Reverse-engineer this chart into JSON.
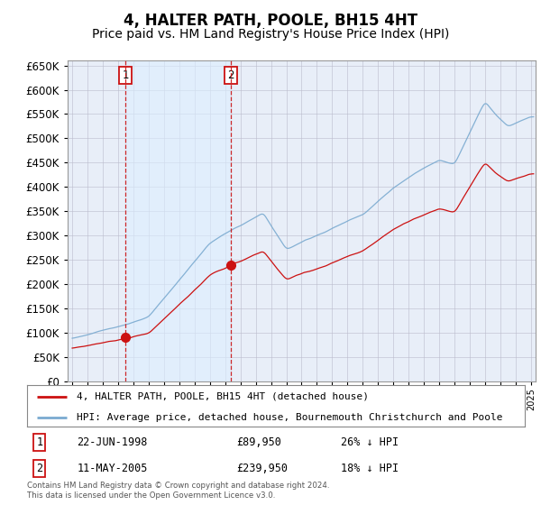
{
  "title": "4, HALTER PATH, POOLE, BH15 4HT",
  "subtitle": "Price paid vs. HM Land Registry's House Price Index (HPI)",
  "title_fontsize": 12,
  "subtitle_fontsize": 10,
  "background_color": "#ffffff",
  "plot_bg_color": "#e8eef8",
  "shade_color": "#dce8f5",
  "grid_color": "#bbbbcc",
  "hpi_color": "#7aaad0",
  "price_color": "#cc1111",
  "dashed_line_color": "#cc1111",
  "legend_label_price": "4, HALTER PATH, POOLE, BH15 4HT (detached house)",
  "legend_label_hpi": "HPI: Average price, detached house, Bournemouth Christchurch and Poole",
  "sale1_date": "22-JUN-1998",
  "sale1_year": 1998.47,
  "sale1_price": 89950,
  "sale1_label": "1",
  "sale1_pct": "26% ↓ HPI",
  "sale2_date": "11-MAY-2005",
  "sale2_year": 2005.36,
  "sale2_price": 239950,
  "sale2_label": "2",
  "sale2_pct": "18% ↓ HPI",
  "footer": "Contains HM Land Registry data © Crown copyright and database right 2024.\nThis data is licensed under the Open Government Licence v3.0.",
  "ylim": [
    0,
    660000
  ],
  "yticks": [
    0,
    50000,
    100000,
    150000,
    200000,
    250000,
    300000,
    350000,
    400000,
    450000,
    500000,
    550000,
    600000,
    650000
  ],
  "xlim_start": 1994.7,
  "xlim_end": 2025.3
}
